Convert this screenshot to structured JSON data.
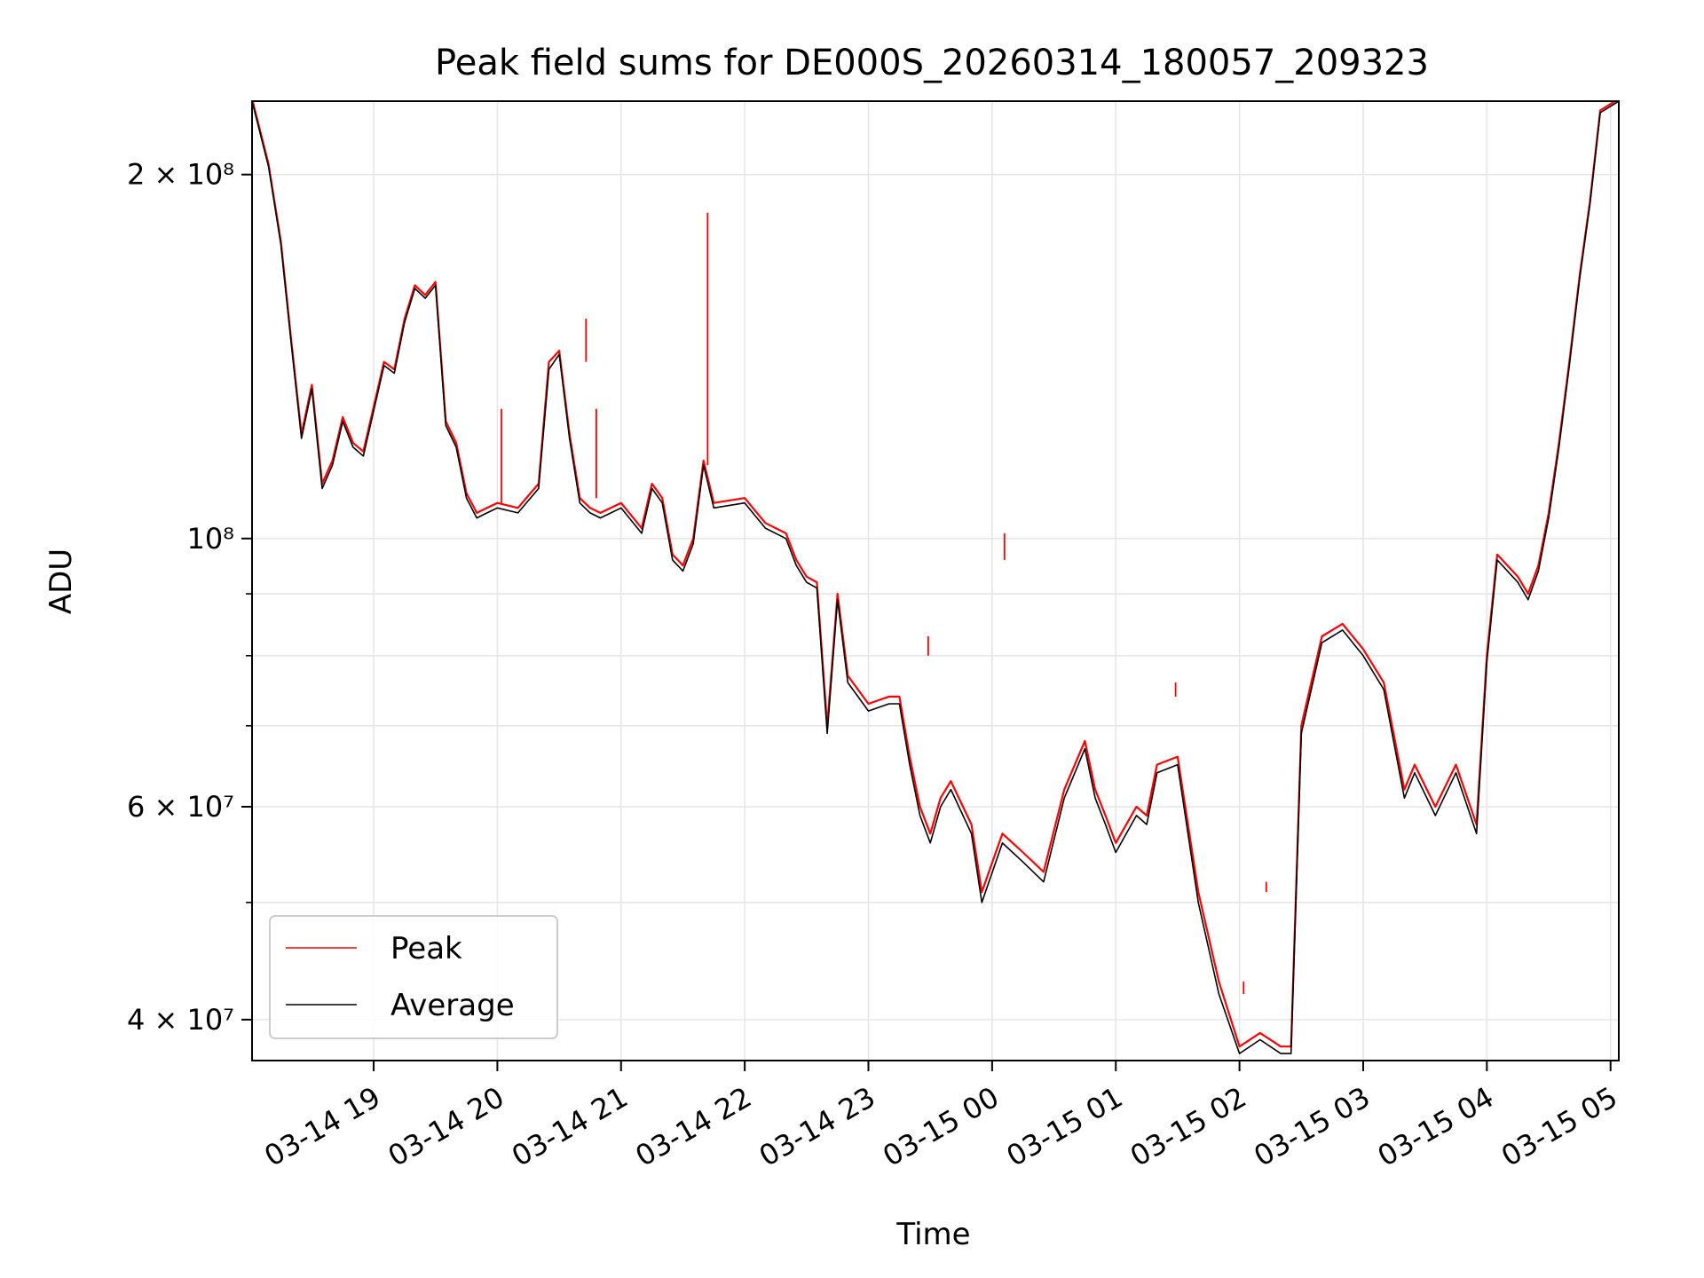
{
  "chart_data": {
    "type": "line",
    "title": "Peak field sums for DE000S_20260314_180057_209323",
    "xlabel": "Time",
    "ylabel": "ADU",
    "yscale": "log",
    "grid": true,
    "legend_position": "lower-left",
    "xlim": [
      "2026-03-14 18:01",
      "2026-03-15 05:04"
    ],
    "ylim": [
      37000000,
      230000000
    ],
    "x_ticks": [
      {
        "value": "2026-03-14 19:00",
        "label": "03-14 19"
      },
      {
        "value": "2026-03-14 20:00",
        "label": "03-14 20"
      },
      {
        "value": "2026-03-14 21:00",
        "label": "03-14 21"
      },
      {
        "value": "2026-03-14 22:00",
        "label": "03-14 22"
      },
      {
        "value": "2026-03-14 23:00",
        "label": "03-14 23"
      },
      {
        "value": "2026-03-15 00:00",
        "label": "03-15 00"
      },
      {
        "value": "2026-03-15 01:00",
        "label": "03-15 01"
      },
      {
        "value": "2026-03-15 02:00",
        "label": "03-15 02"
      },
      {
        "value": "2026-03-15 03:00",
        "label": "03-15 03"
      },
      {
        "value": "2026-03-15 04:00",
        "label": "03-15 04"
      },
      {
        "value": "2026-03-15 05:00",
        "label": "03-15 05"
      }
    ],
    "y_ticks": [
      {
        "value": 40000000,
        "label": "4 × 10⁷"
      },
      {
        "value": 60000000,
        "label": "6 × 10⁷"
      },
      {
        "value": 100000000,
        "label": "10⁸"
      },
      {
        "value": 200000000,
        "label": "2 × 10⁸"
      }
    ],
    "y_minor_ticks": [
      50000000,
      70000000,
      80000000,
      90000000
    ],
    "x": [
      "2026-03-14 18:01",
      "2026-03-14 18:09",
      "2026-03-14 18:15",
      "2026-03-14 18:20",
      "2026-03-14 18:25",
      "2026-03-14 18:30",
      "2026-03-14 18:35",
      "2026-03-14 18:40",
      "2026-03-14 18:45",
      "2026-03-14 18:50",
      "2026-03-14 18:55",
      "2026-03-14 19:05",
      "2026-03-14 19:10",
      "2026-03-14 19:15",
      "2026-03-14 19:20",
      "2026-03-14 19:25",
      "2026-03-14 19:30",
      "2026-03-14 19:35",
      "2026-03-14 19:40",
      "2026-03-14 19:45",
      "2026-03-14 19:50",
      "2026-03-14 19:55",
      "2026-03-14 20:00",
      "2026-03-14 20:10",
      "2026-03-14 20:20",
      "2026-03-14 20:25",
      "2026-03-14 20:30",
      "2026-03-14 20:35",
      "2026-03-14 20:40",
      "2026-03-14 20:45",
      "2026-03-14 20:50",
      "2026-03-14 21:00",
      "2026-03-14 21:10",
      "2026-03-14 21:15",
      "2026-03-14 21:20",
      "2026-03-14 21:25",
      "2026-03-14 21:30",
      "2026-03-14 21:35",
      "2026-03-14 21:40",
      "2026-03-14 21:45",
      "2026-03-14 22:00",
      "2026-03-14 22:10",
      "2026-03-14 22:20",
      "2026-03-14 22:25",
      "2026-03-14 22:30",
      "2026-03-14 22:35",
      "2026-03-14 22:40",
      "2026-03-14 22:45",
      "2026-03-14 22:50",
      "2026-03-14 23:00",
      "2026-03-14 23:10",
      "2026-03-14 23:15",
      "2026-03-14 23:20",
      "2026-03-14 23:25",
      "2026-03-14 23:30",
      "2026-03-14 23:35",
      "2026-03-14 23:40",
      "2026-03-14 23:50",
      "2026-03-14 23:55",
      "2026-03-15 00:05",
      "2026-03-15 00:15",
      "2026-03-15 00:25",
      "2026-03-15 00:35",
      "2026-03-15 00:45",
      "2026-03-15 00:50",
      "2026-03-15 00:55",
      "2026-03-15 01:00",
      "2026-03-15 01:10",
      "2026-03-15 01:15",
      "2026-03-15 01:20",
      "2026-03-15 01:30",
      "2026-03-15 01:40",
      "2026-03-15 01:50",
      "2026-03-15 02:00",
      "2026-03-15 02:10",
      "2026-03-15 02:20",
      "2026-03-15 02:25",
      "2026-03-15 02:30",
      "2026-03-15 02:40",
      "2026-03-15 02:50",
      "2026-03-15 03:00",
      "2026-03-15 03:10",
      "2026-03-15 03:20",
      "2026-03-15 03:25",
      "2026-03-15 03:35",
      "2026-03-15 03:45",
      "2026-03-15 03:55",
      "2026-03-15 04:00",
      "2026-03-15 04:05",
      "2026-03-15 04:15",
      "2026-03-15 04:20",
      "2026-03-15 04:25",
      "2026-03-15 04:30",
      "2026-03-15 04:35",
      "2026-03-15 04:40",
      "2026-03-15 04:45",
      "2026-03-15 04:50",
      "2026-03-15 04:55",
      "2026-03-15 05:04"
    ],
    "series": [
      {
        "name": "Peak",
        "color": "#ff0000",
        "values": [
          231000000,
          204000000,
          176000000,
          146000000,
          122000000,
          134000000,
          111000000,
          116000000,
          126000000,
          120000000,
          118000000,
          140000000,
          138000000,
          152000000,
          162000000,
          159000000,
          163000000,
          125000000,
          120000000,
          109000000,
          105000000,
          106000000,
          107000000,
          106000000,
          111000000,
          140000000,
          143000000,
          122000000,
          108000000,
          106000000,
          105000000,
          107000000,
          102000000,
          111000000,
          108000000,
          97000000,
          95000000,
          100000000,
          116000000,
          107000000,
          108000000,
          103000000,
          101000000,
          96000000,
          93000000,
          92000000,
          70000000,
          90000000,
          77000000,
          73000000,
          74000000,
          74000000,
          66000000,
          60000000,
          57000000,
          61000000,
          63000000,
          58000000,
          51000000,
          57000000,
          55000000,
          53000000,
          62000000,
          68000000,
          62000000,
          59000000,
          56000000,
          60000000,
          59000000,
          65000000,
          66000000,
          51000000,
          43000000,
          38000000,
          39000000,
          38000000,
          38000000,
          70000000,
          83000000,
          85000000,
          81000000,
          76000000,
          62000000,
          65000000,
          60000000,
          65000000,
          58000000,
          80000000,
          97000000,
          93000000,
          90000000,
          95000000,
          105000000,
          120000000,
          140000000,
          165000000,
          190000000,
          226000000,
          231000000
        ]
      },
      {
        "name": "Average",
        "color": "#000000",
        "values": [
          230000000,
          203000000,
          175000000,
          145000000,
          121000000,
          133000000,
          110000000,
          115000000,
          125000000,
          119000000,
          117000000,
          139000000,
          137000000,
          151000000,
          161000000,
          158000000,
          162000000,
          124000000,
          119000000,
          108000000,
          104000000,
          105000000,
          106000000,
          105000000,
          110000000,
          138000000,
          142000000,
          121000000,
          107000000,
          105000000,
          104000000,
          106000000,
          101000000,
          110000000,
          107000000,
          96000000,
          94000000,
          99000000,
          115000000,
          106000000,
          107000000,
          102000000,
          100000000,
          95000000,
          92000000,
          91000000,
          69000000,
          89000000,
          76000000,
          72000000,
          73000000,
          73000000,
          65000000,
          59000000,
          56000000,
          60000000,
          62000000,
          57000000,
          50000000,
          56000000,
          54000000,
          52000000,
          61000000,
          67000000,
          61000000,
          58000000,
          55000000,
          59000000,
          58000000,
          64000000,
          65000000,
          50000000,
          42000000,
          37500000,
          38500000,
          37500000,
          37500000,
          69000000,
          82000000,
          84000000,
          80000000,
          75000000,
          61000000,
          64000000,
          59000000,
          64000000,
          57000000,
          79000000,
          96000000,
          92000000,
          89000000,
          94000000,
          104000000,
          119000000,
          139000000,
          164000000,
          189000000,
          225000000,
          230000000
        ]
      }
    ],
    "spikes": [
      {
        "x": "2026-03-14 20:02",
        "peak": 128000000,
        "average": 107000000
      },
      {
        "x": "2026-03-14 20:43",
        "peak": 152000000,
        "average": 140000000
      },
      {
        "x": "2026-03-14 20:48",
        "peak": 128000000,
        "average": 108000000
      },
      {
        "x": "2026-03-14 21:42",
        "peak": 186000000,
        "average": 115000000
      },
      {
        "x": "2026-03-14 23:29",
        "peak": 83000000,
        "average": 80000000
      },
      {
        "x": "2026-03-15 00:06",
        "peak": 101000000,
        "average": 96000000
      },
      {
        "x": "2026-03-15 01:29",
        "peak": 76000000,
        "average": 74000000
      },
      {
        "x": "2026-03-15 02:02",
        "peak": 43000000,
        "average": 42000000
      },
      {
        "x": "2026-03-15 02:13",
        "peak": 52000000,
        "average": 51000000
      }
    ],
    "legend": [
      {
        "label": "Peak",
        "color": "#ff0000"
      },
      {
        "label": "Average",
        "color": "#000000"
      }
    ]
  }
}
